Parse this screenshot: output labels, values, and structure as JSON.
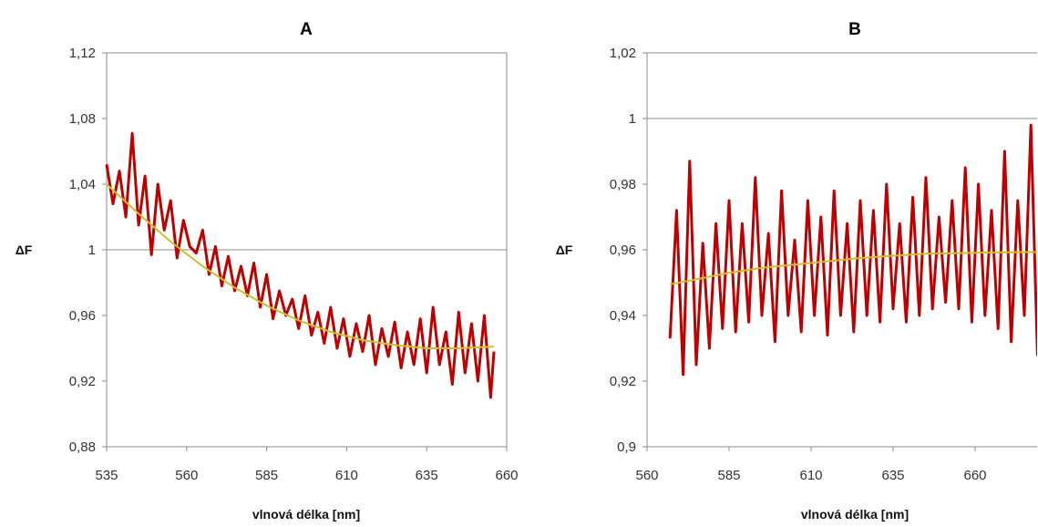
{
  "chart_data": [
    {
      "type": "line",
      "title": "A",
      "xlabel": "vlnová délka [nm]",
      "ylabel": "ΔF",
      "xlim": [
        535,
        660
      ],
      "ylim": [
        0.88,
        1.12
      ],
      "xticks": [
        "535",
        "560",
        "585",
        "610",
        "635",
        "660"
      ],
      "yticks": [
        "0,88",
        "0,92",
        "0,96",
        "1",
        "1,04",
        "1,08",
        "1,12"
      ],
      "gridlines_y": [
        1.0
      ],
      "series": [
        {
          "color": "#c00000",
          "x": [
            535,
            537,
            539,
            541,
            543,
            545,
            547,
            549,
            551,
            553,
            555,
            557,
            559,
            561,
            563,
            565,
            567,
            569,
            571,
            573,
            575,
            577,
            579,
            581,
            583,
            585,
            587,
            589,
            591,
            593,
            595,
            597,
            599,
            601,
            603,
            605,
            607,
            609,
            611,
            613,
            615,
            617,
            619,
            621,
            623,
            625,
            627,
            629,
            631,
            633,
            635,
            637,
            639,
            641,
            643,
            645,
            647,
            649,
            651,
            653,
            655,
            656
          ],
          "y": [
            1.052,
            1.028,
            1.048,
            1.02,
            1.071,
            1.015,
            1.045,
            0.997,
            1.04,
            1.012,
            1.03,
            0.995,
            1.018,
            1.002,
            0.998,
            1.012,
            0.985,
            1.002,
            0.978,
            0.996,
            0.975,
            0.99,
            0.972,
            0.992,
            0.965,
            0.985,
            0.958,
            0.975,
            0.96,
            0.97,
            0.952,
            0.972,
            0.948,
            0.962,
            0.943,
            0.965,
            0.94,
            0.958,
            0.935,
            0.955,
            0.938,
            0.96,
            0.93,
            0.952,
            0.935,
            0.956,
            0.928,
            0.95,
            0.93,
            0.958,
            0.925,
            0.965,
            0.93,
            0.95,
            0.918,
            0.962,
            0.925,
            0.955,
            0.92,
            0.96,
            0.91,
            0.938
          ]
        },
        {
          "color": "#c9c12a",
          "x": [
            535,
            545,
            555,
            565,
            575,
            585,
            595,
            605,
            615,
            625,
            635,
            645,
            656
          ],
          "y": [
            1.04,
            1.022,
            1.005,
            0.99,
            0.977,
            0.966,
            0.957,
            0.95,
            0.945,
            0.942,
            0.94,
            0.94,
            0.941
          ]
        }
      ]
    },
    {
      "type": "line",
      "title": "B",
      "xlabel": "vlnová délka [nm]",
      "ylabel": "ΔF",
      "xlim": [
        560,
        685
      ],
      "ylim": [
        0.9,
        1.02
      ],
      "xticks": [
        "560",
        "585",
        "610",
        "635",
        "660"
      ],
      "yticks": [
        "0,9",
        "0,92",
        "0,94",
        "0,96",
        "0,98",
        "1",
        "1,02"
      ],
      "gridlines_y": [
        1.0
      ],
      "series": [
        {
          "color": "#c00000",
          "x": [
            567,
            569,
            571,
            573,
            575,
            577,
            579,
            581,
            583,
            585,
            587,
            589,
            591,
            593,
            595,
            597,
            599,
            601,
            603,
            605,
            607,
            609,
            611,
            613,
            615,
            617,
            619,
            621,
            623,
            625,
            627,
            629,
            631,
            633,
            635,
            637,
            639,
            641,
            643,
            645,
            647,
            649,
            651,
            653,
            655,
            657,
            659,
            661,
            663,
            665,
            667,
            669,
            671,
            673,
            675,
            677,
            679,
            681,
            683
          ],
          "y": [
            0.933,
            0.972,
            0.922,
            0.987,
            0.925,
            0.962,
            0.93,
            0.968,
            0.936,
            0.975,
            0.935,
            0.968,
            0.938,
            0.982,
            0.94,
            0.965,
            0.932,
            0.978,
            0.94,
            0.963,
            0.935,
            0.975,
            0.94,
            0.97,
            0.934,
            0.978,
            0.94,
            0.968,
            0.935,
            0.975,
            0.94,
            0.972,
            0.938,
            0.98,
            0.942,
            0.968,
            0.938,
            0.976,
            0.94,
            0.982,
            0.942,
            0.97,
            0.944,
            0.975,
            0.942,
            0.985,
            0.938,
            0.98,
            0.94,
            0.972,
            0.936,
            0.99,
            0.932,
            0.975,
            0.94,
            0.998,
            0.928,
            0.992,
            0.94
          ]
        },
        {
          "color": "#c9c12a",
          "x": [
            567,
            575,
            585,
            595,
            605,
            615,
            625,
            635,
            645,
            655,
            665,
            675,
            685
          ],
          "y": [
            0.9495,
            0.951,
            0.953,
            0.9545,
            0.9555,
            0.9565,
            0.9575,
            0.9582,
            0.9588,
            0.959,
            0.9592,
            0.9593,
            0.9593
          ]
        }
      ]
    }
  ]
}
